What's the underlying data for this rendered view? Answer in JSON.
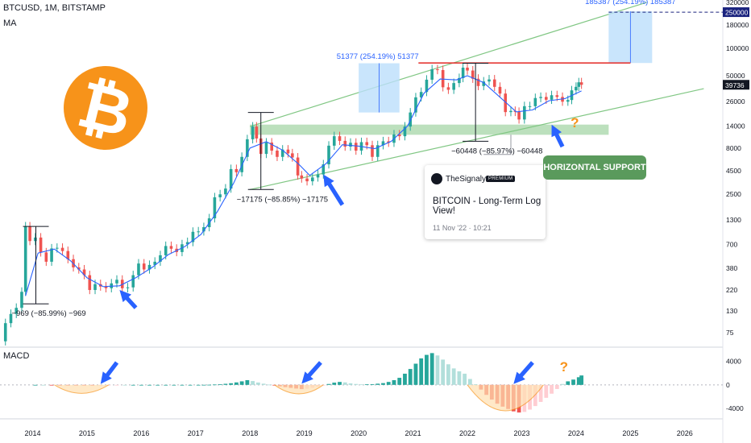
{
  "header": {
    "symbol_line": "BTCUSD, 1M, BITSTAMP",
    "indicator": "MA"
  },
  "macd_label": "MACD",
  "idea_card": {
    "publisher": "TheSignalyst",
    "badge": "PREMIUM",
    "title": "BITCOIN - Long-Term Log View!",
    "date": "11 Nov '22 · 10:21"
  },
  "support_label": "HORIZONTAL SUPPORT",
  "colors": {
    "up": "#26a69a",
    "down": "#ef5350",
    "ma": "#2962ff",
    "channel": "#81c784",
    "zone": "#a5d6a7",
    "resistance": "#e53935",
    "arrow": "#2962ff",
    "question": "#f7931a",
    "bitcoin": "#f7931a",
    "target_box": "#bbdefb",
    "target_text": "#2962ff"
  },
  "chart_data": [
    {
      "type": "candlestick",
      "title": "BTCUSD, 1M, BITSTAMP",
      "scale": "log",
      "ylim": [
        55,
        340000
      ],
      "y_ticks": [
        320000,
        180000,
        100000,
        50000,
        26000,
        14000,
        8000,
        4500,
        2500,
        1300,
        700,
        380,
        220,
        130,
        75
      ],
      "x_ticks": [
        "2014",
        "2015",
        "2016",
        "2017",
        "2018",
        "2019",
        "2020",
        "2021",
        "2022",
        "2023",
        "2024",
        "2025",
        "2026"
      ],
      "x_tick_years": [
        2014,
        2015,
        2016,
        2017,
        2018,
        2019,
        2020,
        2021,
        2022,
        2023,
        2024,
        2025,
        2026
      ],
      "xlim": [
        2013.4,
        2026.7
      ],
      "price_labels": [
        {
          "value": 250000,
          "text": "250000",
          "style": "target"
        },
        {
          "value": 39736,
          "text": "39736",
          "style": "current"
        }
      ],
      "price_path": [
        [
          2013.4,
          60
        ],
        [
          2013.5,
          95
        ],
        [
          2013.6,
          120
        ],
        [
          2013.7,
          140
        ],
        [
          2013.8,
          210
        ],
        [
          2013.87,
          1100
        ],
        [
          2013.95,
          760
        ],
        [
          2014.05,
          830
        ],
        [
          2014.15,
          570
        ],
        [
          2014.25,
          450
        ],
        [
          2014.35,
          630
        ],
        [
          2014.45,
          640
        ],
        [
          2014.55,
          590
        ],
        [
          2014.65,
          480
        ],
        [
          2014.75,
          390
        ],
        [
          2014.85,
          370
        ],
        [
          2014.95,
          320
        ],
        [
          2015.05,
          220
        ],
        [
          2015.15,
          255
        ],
        [
          2015.25,
          240
        ],
        [
          2015.35,
          230
        ],
        [
          2015.45,
          260
        ],
        [
          2015.55,
          285
        ],
        [
          2015.65,
          230
        ],
        [
          2015.75,
          235
        ],
        [
          2015.85,
          320
        ],
        [
          2015.95,
          430
        ],
        [
          2016.05,
          370
        ],
        [
          2016.15,
          415
        ],
        [
          2016.25,
          450
        ],
        [
          2016.35,
          530
        ],
        [
          2016.45,
          670
        ],
        [
          2016.55,
          625
        ],
        [
          2016.65,
          575
        ],
        [
          2016.75,
          700
        ],
        [
          2016.85,
          740
        ],
        [
          2016.95,
          960
        ],
        [
          2017.05,
          970
        ],
        [
          2017.15,
          1080
        ],
        [
          2017.25,
          1350
        ],
        [
          2017.35,
          2300
        ],
        [
          2017.45,
          2480
        ],
        [
          2017.55,
          2870
        ],
        [
          2017.65,
          4700
        ],
        [
          2017.75,
          4340
        ],
        [
          2017.85,
          6400
        ],
        [
          2017.95,
          10000
        ],
        [
          2018.05,
          13800
        ],
        [
          2018.12,
          10200
        ],
        [
          2018.2,
          6900
        ],
        [
          2018.3,
          9200
        ],
        [
          2018.4,
          7500
        ],
        [
          2018.5,
          6400
        ],
        [
          2018.6,
          7700
        ],
        [
          2018.7,
          7000
        ],
        [
          2018.78,
          6300
        ],
        [
          2018.88,
          4000
        ],
        [
          2018.95,
          3700
        ],
        [
          2019.05,
          3450
        ],
        [
          2019.15,
          3800
        ],
        [
          2019.25,
          4100
        ],
        [
          2019.35,
          5300
        ],
        [
          2019.45,
          8500
        ],
        [
          2019.55,
          10800
        ],
        [
          2019.65,
          9600
        ],
        [
          2019.75,
          8300
        ],
        [
          2019.85,
          9150
        ],
        [
          2019.95,
          7500
        ],
        [
          2020.05,
          9300
        ],
        [
          2020.15,
          8600
        ],
        [
          2020.25,
          6400
        ],
        [
          2020.35,
          8600
        ],
        [
          2020.45,
          9500
        ],
        [
          2020.55,
          9150
        ],
        [
          2020.65,
          11300
        ],
        [
          2020.75,
          10800
        ],
        [
          2020.85,
          13800
        ],
        [
          2020.95,
          19700
        ],
        [
          2021.05,
          28900
        ],
        [
          2021.15,
          33100
        ],
        [
          2021.25,
          45200
        ],
        [
          2021.35,
          58800
        ],
        [
          2021.45,
          57700
        ],
        [
          2021.55,
          37300
        ],
        [
          2021.65,
          35000
        ],
        [
          2021.75,
          41500
        ],
        [
          2021.85,
          47100
        ],
        [
          2021.92,
          61300
        ],
        [
          2022.0,
          57000
        ],
        [
          2022.1,
          46300
        ],
        [
          2022.2,
          38500
        ],
        [
          2022.3,
          43200
        ],
        [
          2022.4,
          45500
        ],
        [
          2022.5,
          37700
        ],
        [
          2022.6,
          31800
        ],
        [
          2022.7,
          19900
        ],
        [
          2022.8,
          20500
        ],
        [
          2022.88,
          20000
        ],
        [
          2022.95,
          16500
        ],
        [
          2023.05,
          23100
        ],
        [
          2023.15,
          23100
        ],
        [
          2023.25,
          28400
        ],
        [
          2023.35,
          29200
        ],
        [
          2023.45,
          27200
        ],
        [
          2023.55,
          30500
        ],
        [
          2023.65,
          29200
        ],
        [
          2023.75,
          25900
        ],
        [
          2023.85,
          27000
        ],
        [
          2023.92,
          34500
        ],
        [
          2024.0,
          37700
        ],
        [
          2024.05,
          42300
        ],
        [
          2024.1,
          39736
        ]
      ],
      "moving_average": [
        [
          2013.87,
          190
        ],
        [
          2014.1,
          560
        ],
        [
          2014.4,
          620
        ],
        [
          2014.7,
          460
        ],
        [
          2015.0,
          300
        ],
        [
          2015.3,
          240
        ],
        [
          2015.6,
          245
        ],
        [
          2015.9,
          300
        ],
        [
          2016.2,
          390
        ],
        [
          2016.5,
          540
        ],
        [
          2016.8,
          660
        ],
        [
          2017.1,
          900
        ],
        [
          2017.4,
          1600
        ],
        [
          2017.7,
          3300
        ],
        [
          2018.0,
          8000
        ],
        [
          2018.3,
          9400
        ],
        [
          2018.6,
          7600
        ],
        [
          2018.9,
          5300
        ],
        [
          2019.1,
          4000
        ],
        [
          2019.4,
          5400
        ],
        [
          2019.7,
          8700
        ],
        [
          2020.0,
          8400
        ],
        [
          2020.3,
          7900
        ],
        [
          2020.6,
          9500
        ],
        [
          2020.9,
          14000
        ],
        [
          2021.2,
          32000
        ],
        [
          2021.5,
          46000
        ],
        [
          2021.8,
          45000
        ],
        [
          2022.0,
          50000
        ],
        [
          2022.3,
          42000
        ],
        [
          2022.6,
          29000
        ],
        [
          2022.9,
          20000
        ],
        [
          2023.2,
          21000
        ],
        [
          2023.5,
          26500
        ],
        [
          2023.8,
          28000
        ],
        [
          2024.1,
          34000
        ]
      ],
      "annotations": {
        "channel_upper": [
          [
            2018.0,
            13800
          ],
          [
            2025.3,
            320000
          ]
        ],
        "channel_lower": [
          [
            2018.0,
            2800
          ],
          [
            2026.35,
            36000
          ]
        ],
        "support_zone": [
          2018.0,
          2024.6,
          11200,
          14500
        ],
        "resistance": [
          2021.1,
          2025.0,
          69000
        ],
        "target_line": [
          2024.6,
          2026.7,
          250000
        ],
        "target_box": {
          "x": [
            2024.6,
            2025.4
          ],
          "y": [
            69000,
            255000
          ]
        },
        "gain_box": {
          "x": [
            2020.0,
            2020.75
          ],
          "y": [
            19700,
            68500
          ]
        },
        "declines": [
          {
            "x": 2014.06,
            "y": [
              1100,
              155
            ],
            "label": "−969 (−85.99%) −969"
          },
          {
            "x": 2018.2,
            "y": [
              19700,
              2800
            ],
            "label": "−17175 (−85.85%) −17175"
          },
          {
            "x": 2022.15,
            "y": [
              68500,
              9500
            ],
            "label": "−60448 (−85.97%) −60448"
          }
        ],
        "gains": [
          {
            "text": "51377 (254.19%) 51377",
            "x": 2020.35,
            "y": 85000
          },
          {
            "text": "185387 (254.19%) 185387",
            "x": 2025.0,
            "y": 340000
          }
        ],
        "arrows": [
          {
            "tip": [
              2015.6,
              220
            ],
            "tail": [
              2015.9,
              140
            ]
          },
          {
            "tip": [
              2019.35,
              4100
            ],
            "tail": [
              2019.7,
              1900
            ]
          },
          {
            "tip": [
              2023.55,
              14500
            ],
            "tail": [
              2023.75,
              8300
            ]
          }
        ],
        "question": {
          "text": "?",
          "x": 2023.9,
          "y": 13500
        },
        "card_connector": [
          [
            2022.8,
            11200
          ],
          [
            2022.8,
            6800
          ],
          [
            2022.3,
            6800
          ]
        ]
      }
    },
    {
      "type": "bar",
      "title": "MACD",
      "ylim": [
        -5500,
        6000
      ],
      "y_ticks": [
        4000,
        0,
        -4000
      ],
      "histogram": [
        [
          2014.05,
          0.3
        ],
        [
          2014.2,
          0.1
        ],
        [
          2014.35,
          -0.1
        ],
        [
          2014.5,
          -0.2
        ],
        [
          2014.65,
          -0.3
        ],
        [
          2014.8,
          -0.35
        ],
        [
          2014.95,
          -0.4
        ],
        [
          2015.1,
          -0.4
        ],
        [
          2015.25,
          -0.3
        ],
        [
          2015.4,
          -0.2
        ],
        [
          2015.55,
          -0.1
        ],
        [
          2015.7,
          0.05
        ],
        [
          2015.85,
          0.15
        ],
        [
          2016.0,
          0.25
        ],
        [
          2016.15,
          0.4
        ],
        [
          2016.3,
          0.55
        ],
        [
          2016.45,
          0.7
        ],
        [
          2016.6,
          0.9
        ],
        [
          2016.75,
          1
        ],
        [
          2016.9,
          1.2
        ],
        [
          2017.05,
          4
        ],
        [
          2017.15,
          8
        ],
        [
          2017.25,
          25
        ],
        [
          2017.35,
          60
        ],
        [
          2017.45,
          110
        ],
        [
          2017.55,
          180
        ],
        [
          2017.65,
          280
        ],
        [
          2017.75,
          420
        ],
        [
          2017.85,
          600
        ],
        [
          2017.95,
          800
        ],
        [
          2018.05,
          650
        ],
        [
          2018.15,
          400
        ],
        [
          2018.25,
          200
        ],
        [
          2018.35,
          50
        ],
        [
          2018.45,
          -100
        ],
        [
          2018.55,
          -250
        ],
        [
          2018.65,
          -380
        ],
        [
          2018.75,
          -500
        ],
        [
          2018.85,
          -620
        ],
        [
          2018.95,
          -720
        ],
        [
          2019.05,
          -650
        ],
        [
          2019.15,
          -500
        ],
        [
          2019.25,
          -300
        ],
        [
          2019.35,
          -100
        ],
        [
          2019.45,
          150
        ],
        [
          2019.55,
          380
        ],
        [
          2019.65,
          500
        ],
        [
          2019.75,
          420
        ],
        [
          2019.85,
          250
        ],
        [
          2019.95,
          150
        ],
        [
          2020.05,
          80
        ],
        [
          2020.15,
          100
        ],
        [
          2020.25,
          120
        ],
        [
          2020.35,
          200
        ],
        [
          2020.45,
          300
        ],
        [
          2020.55,
          500
        ],
        [
          2020.65,
          800
        ],
        [
          2020.75,
          1200
        ],
        [
          2020.85,
          1900
        ],
        [
          2020.95,
          2700
        ],
        [
          2021.05,
          3600
        ],
        [
          2021.15,
          4500
        ],
        [
          2021.25,
          5100
        ],
        [
          2021.35,
          5400
        ],
        [
          2021.45,
          5000
        ],
        [
          2021.55,
          4300
        ],
        [
          2021.65,
          3500
        ],
        [
          2021.75,
          2800
        ],
        [
          2021.85,
          2300
        ],
        [
          2021.95,
          1900
        ],
        [
          2022.05,
          1000
        ],
        [
          2022.15,
          100
        ],
        [
          2022.25,
          -800
        ],
        [
          2022.35,
          -1700
        ],
        [
          2022.45,
          -2500
        ],
        [
          2022.55,
          -3200
        ],
        [
          2022.65,
          -3700
        ],
        [
          2022.75,
          -4100
        ],
        [
          2022.85,
          -4500
        ],
        [
          2022.95,
          -4700
        ],
        [
          2023.05,
          -4600
        ],
        [
          2023.15,
          -4200
        ],
        [
          2023.25,
          -3600
        ],
        [
          2023.35,
          -2900
        ],
        [
          2023.45,
          -2200
        ],
        [
          2023.55,
          -1500
        ],
        [
          2023.65,
          -700
        ],
        [
          2023.75,
          150
        ],
        [
          2023.85,
          600
        ],
        [
          2023.95,
          900
        ],
        [
          2024.05,
          1300
        ],
        [
          2024.1,
          1600
        ]
      ],
      "bowls": [
        {
          "x": [
            2014.4,
            2015.4
          ],
          "depth": -1800
        },
        {
          "x": [
            2018.45,
            2019.35
          ],
          "depth": -1900
        },
        {
          "x": [
            2022.0,
            2023.4
          ],
          "depth": -5500
        }
      ],
      "arrows": [
        {
          "tip": [
            2015.25,
            150
          ],
          "tail": [
            2015.55,
            3800
          ]
        },
        {
          "tip": [
            2018.95,
            200
          ],
          "tail": [
            2019.3,
            3800
          ]
        },
        {
          "tip": [
            2022.85,
            150
          ],
          "tail": [
            2023.2,
            3800
          ]
        }
      ],
      "question": {
        "text": "?",
        "x": 2023.7,
        "y": 2300
      }
    }
  ]
}
